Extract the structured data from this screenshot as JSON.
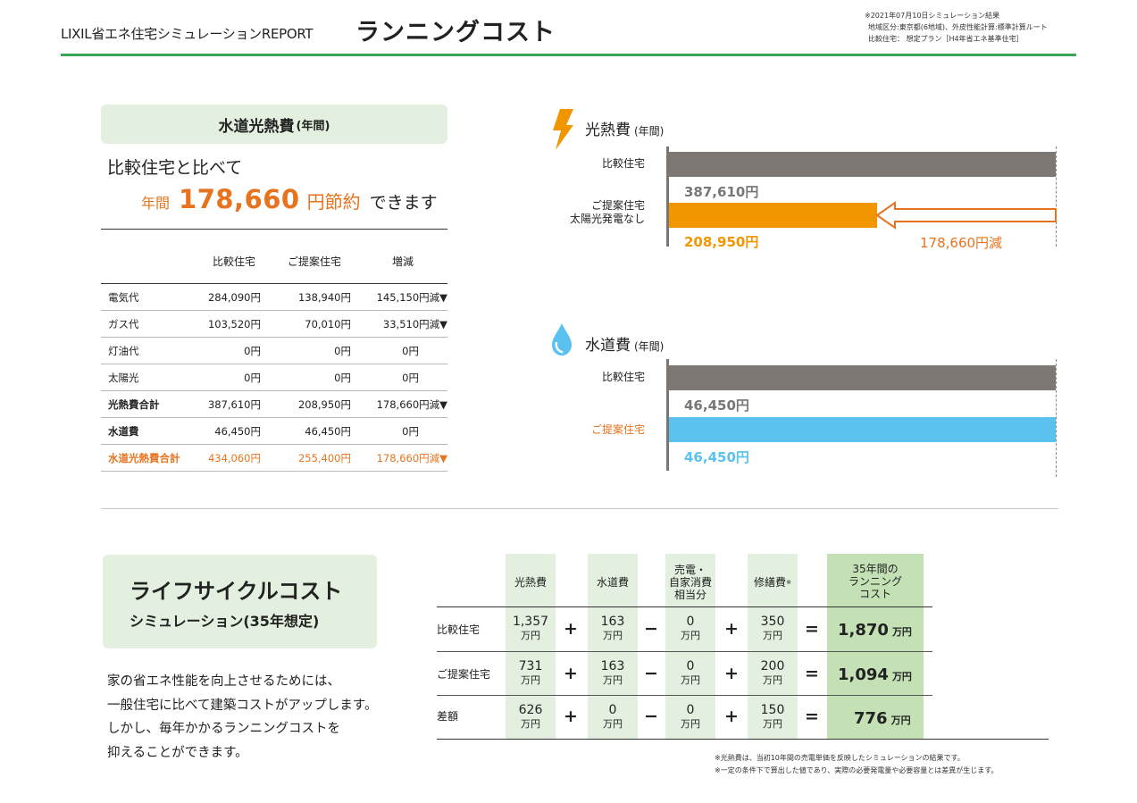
{
  "header": {
    "report_label": "LIXIL省エネ住宅シミュレーションREPORT",
    "title": "ランニングコスト",
    "notes": [
      "※2021年07月10日シミュレーション結果",
      "地域区分:東京都(6地域)、外皮性能計算:標準計算ルート",
      "比較住宅： 想定プラン［H4年省エネ基準住宅］"
    ]
  },
  "water_utility": {
    "title": "水道光熱費",
    "title_suffix": "(年間)",
    "compare_text": "比較住宅と比べて",
    "saving_prefix": "年間",
    "saving_amount": "178,660",
    "saving_suffix": "円節約",
    "saving_tail": "できます"
  },
  "cost_table": {
    "headers": [
      "",
      "比較住宅",
      "ご提案住宅",
      "増減"
    ],
    "rows": [
      {
        "label": "電気代",
        "compare": "284,090円",
        "proposal": "138,940円",
        "diff": "145,150円減▼"
      },
      {
        "label": "ガス代",
        "compare": "103,520円",
        "proposal": "70,010円",
        "diff": "33,510円減▼"
      },
      {
        "label": "灯油代",
        "compare": "0円",
        "proposal": "0円",
        "diff": "0円"
      },
      {
        "label": "太陽光",
        "compare": "0円",
        "proposal": "0円",
        "diff": "0円"
      },
      {
        "label": "光熱費合計",
        "compare": "387,610円",
        "proposal": "208,950円",
        "diff": "178,660円減▼"
      },
      {
        "label": "水道費",
        "compare": "46,450円",
        "proposal": "46,450円",
        "diff": "0円"
      },
      {
        "label": "水道光熱費合計",
        "compare": "434,060円",
        "proposal": "255,400円",
        "diff": "178,660円減▼"
      }
    ]
  },
  "utility_chart": {
    "title": "光熱費",
    "title_suffix": "(年間)",
    "icon": "lightning-icon",
    "compare_label": "比較住宅",
    "proposal_label_1": "ご提案住宅",
    "proposal_label_2": "太陽光発電なし",
    "compare_value_label": "387,610円",
    "proposal_value_label": "208,950円",
    "reduction_label": "178,660円減",
    "colors": {
      "compare": "#7d7874",
      "proposal": "#f29600",
      "arrow": "#e8731e"
    }
  },
  "water_chart": {
    "title": "水道費",
    "title_suffix": "(年間)",
    "icon": "water-drop-icon",
    "compare_label": "比較住宅",
    "proposal_label": "ご提案住宅",
    "compare_value_label": "46,450円",
    "proposal_value_label": "46,450円",
    "colors": {
      "compare": "#7d7874",
      "proposal": "#5bc2ef",
      "proposal_label": "#e8731e"
    }
  },
  "lifecycle": {
    "title": "ライフサイクルコスト",
    "subtitle": "シミュレーション(35年想定)",
    "description": [
      "家の省エネ性能を向上させるためには、",
      "一般住宅に比べて建築コストがアップします。",
      "しかし、毎年かかるランニングコストを",
      "抑えることができます。"
    ],
    "headers": {
      "utility": "光熱費",
      "water": "水道費",
      "sell": [
        "売電・",
        "自家消費",
        "相当分"
      ],
      "repair": "修繕費",
      "repair_mark": "※",
      "total": [
        "35年間の",
        "ランニング",
        "コスト"
      ]
    },
    "unit": "万円",
    "operators": [
      "+",
      "+",
      "−",
      "+",
      "="
    ],
    "rows": [
      {
        "label": "比較住宅",
        "utility": "1,357",
        "water": "163",
        "sell": "0",
        "repair": "350",
        "total": "1,870"
      },
      {
        "label": "ご提案住宅",
        "utility": "731",
        "water": "163",
        "sell": "0",
        "repair": "200",
        "total": "1,094"
      },
      {
        "label": "差額",
        "utility": "626",
        "water": "0",
        "sell": "0",
        "repair": "150",
        "total": "776"
      }
    ],
    "footnotes": [
      "※光熱費は、当初10年間の売電単価を反映したシミュレーションの結果です。",
      "※一定の条件下で算出した値であり、実際の必要発電量や必要容量とは差異が生じます。"
    ]
  }
}
